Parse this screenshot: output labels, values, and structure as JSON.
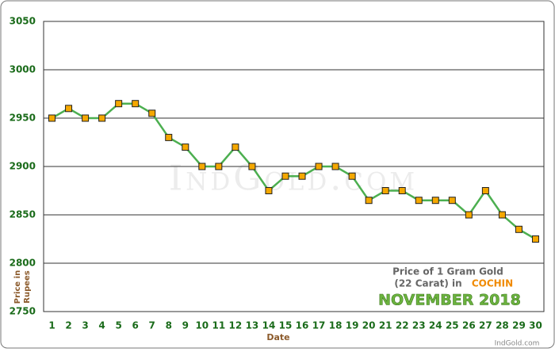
{
  "chart_data": {
    "type": "line",
    "x_label": "Date",
    "y_label": [
      "Price in",
      "Rupees"
    ],
    "categories": [
      "1",
      "2",
      "3",
      "4",
      "5",
      "6",
      "7",
      "8",
      "9",
      "10",
      "11",
      "12",
      "13",
      "14",
      "15",
      "16",
      "17",
      "18",
      "19",
      "20",
      "21",
      "22",
      "23",
      "24",
      "25",
      "26",
      "27",
      "28",
      "29",
      "30"
    ],
    "values": [
      2950,
      2960,
      2950,
      2950,
      2965,
      2965,
      2955,
      2930,
      2920,
      2900,
      2900,
      2920,
      2900,
      2875,
      2890,
      2890,
      2900,
      2900,
      2890,
      2865,
      2875,
      2875,
      2865,
      2865,
      2865,
      2850,
      2875,
      2850,
      2835,
      2825
    ],
    "color": "#4caf50",
    "marker_color": "#f5a800",
    "ylim": [
      2750,
      3050
    ],
    "yticks": [
      2750,
      2800,
      2850,
      2900,
      2950,
      3000,
      3050
    ],
    "grid": true,
    "watermark": "IndGold.com",
    "annotations": {
      "line1": "Price of 1 Gram Gold",
      "line2": "(22 Carat) in",
      "city": "COCHIN",
      "month": "NOVEMBER 2018",
      "source": "IndGold.com"
    }
  }
}
